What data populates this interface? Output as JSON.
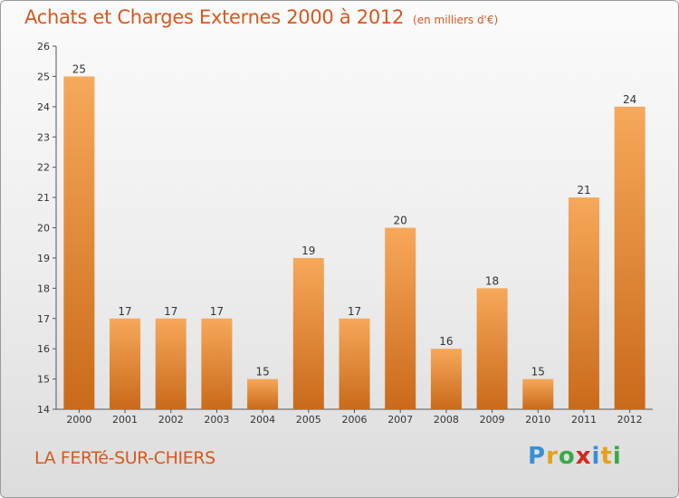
{
  "title": "Achats et Charges Externes 2000 à 2012",
  "subtitle": "(en milliers d'€)",
  "location": "LA FERTé-SUR-CHIERS",
  "brand": {
    "letters": [
      "P",
      "r",
      "o",
      "x",
      "i",
      "t",
      "i"
    ],
    "colors": [
      "#3a8fd6",
      "#e6a11a",
      "#3aa84a",
      "#d8261d",
      "#3a8fd6",
      "#e6a11a",
      "#3aa84a"
    ]
  },
  "colors": {
    "bar_top": "#f7a85a",
    "bar_bottom": "#c96a1a",
    "title": "#d5591f"
  },
  "chart_data": {
    "type": "bar",
    "categories": [
      "2000",
      "2001",
      "2002",
      "2003",
      "2004",
      "2005",
      "2006",
      "2007",
      "2008",
      "2009",
      "2010",
      "2011",
      "2012"
    ],
    "values": [
      25,
      17,
      17,
      17,
      15,
      19,
      17,
      20,
      16,
      18,
      15,
      21,
      24
    ],
    "ylim": [
      14,
      26
    ],
    "yticks": [
      14,
      15,
      16,
      17,
      18,
      19,
      20,
      21,
      22,
      23,
      24,
      25,
      26
    ],
    "grid": false,
    "data_labels": true
  }
}
